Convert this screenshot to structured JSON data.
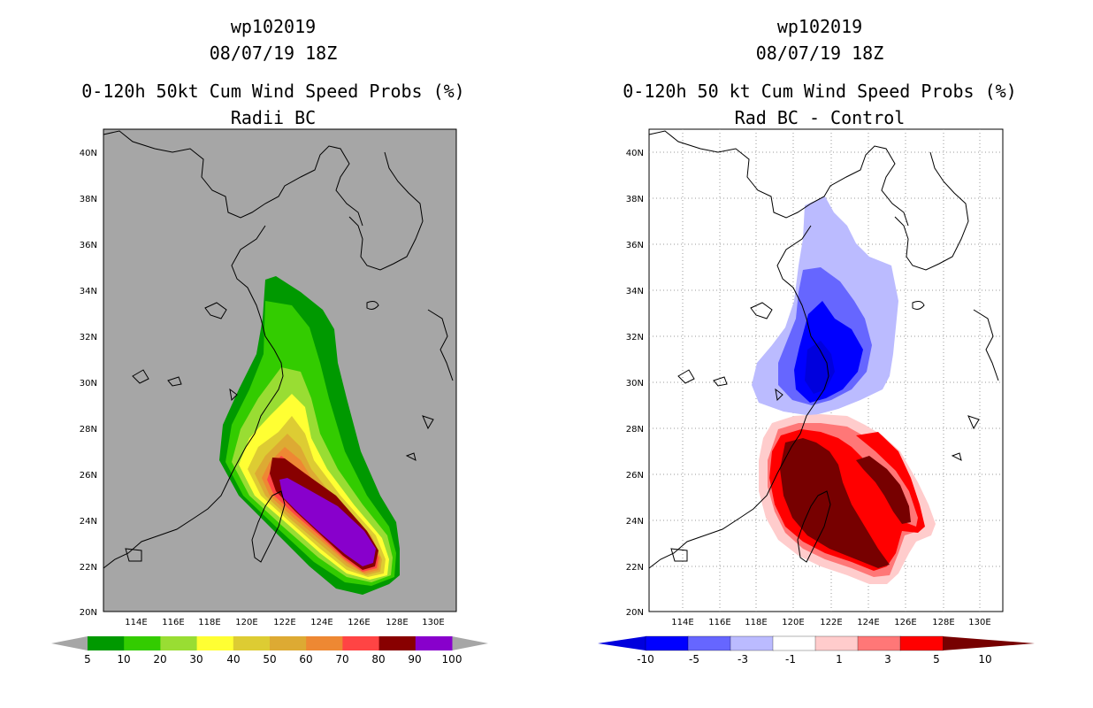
{
  "left_panel": {
    "title_line1": "wp102019",
    "title_line2": "08/07/19 18Z",
    "title_line3": "0-120h 50kt Cum Wind Speed Probs (%)",
    "title_line4": "Radii BC",
    "lat_labels": [
      "40N",
      "38N",
      "36N",
      "34N",
      "32N",
      "30N",
      "28N",
      "26N",
      "24N",
      "22N",
      "20N"
    ],
    "lon_labels": [
      "114E",
      "116E",
      "118E",
      "120E",
      "122E",
      "124E",
      "126E",
      "128E",
      "130E"
    ],
    "colorbar": {
      "labels": [
        "5",
        "10",
        "20",
        "30",
        "40",
        "50",
        "60",
        "70",
        "80",
        "90",
        "100"
      ],
      "colors": [
        "#009900",
        "#33cc00",
        "#99dd33",
        "#ffff33",
        "#ddcc33",
        "#ddaa33",
        "#ee8833",
        "#ff4444",
        "#880000",
        "#8800cc"
      ]
    }
  },
  "right_panel": {
    "title_line1": "wp102019",
    "title_line2": "08/07/19 18Z",
    "title_line3": "0-120h 50 kt Cum Wind Speed Probs (%)",
    "title_line4": "Rad BC - Control",
    "lat_labels": [
      "40N",
      "38N",
      "36N",
      "34N",
      "32N",
      "30N",
      "28N",
      "26N",
      "24N",
      "22N",
      "20N"
    ],
    "lon_labels": [
      "114E",
      "116E",
      "118E",
      "120E",
      "122E",
      "124E",
      "126E",
      "128E",
      "130E"
    ],
    "colorbar": {
      "labels": [
        "-10",
        "-5",
        "-3",
        "-1",
        "1",
        "3",
        "5",
        "10"
      ],
      "colors": [
        "#0000dd",
        "#0000ff",
        "#6666ff",
        "#bbbbff",
        "#ffffff",
        "#ffcccc",
        "#ff7777",
        "#ff0000",
        "#770000"
      ]
    }
  },
  "colors": {
    "map_background_left": "#a6a6a6",
    "map_background_right": "#ffffff",
    "coastline": "#000000",
    "grid": "#999999"
  }
}
